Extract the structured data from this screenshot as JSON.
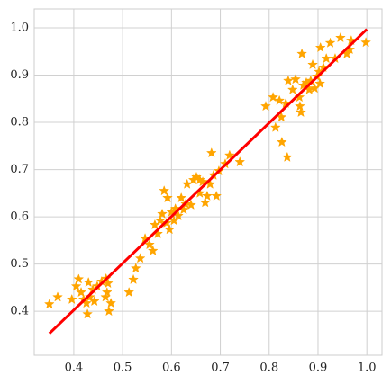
{
  "chart_data": {
    "type": "scatter",
    "xlim": [
      0.319,
      1.031
    ],
    "ylim": [
      0.307,
      1.04
    ],
    "xticks": [
      0.4,
      0.5,
      0.6,
      0.7,
      0.8,
      0.9,
      {
        "value": 1,
        "label": "1.0"
      }
    ],
    "yticks": [
      0.4,
      0.5,
      0.6,
      0.7,
      0.8,
      0.9,
      {
        "value": 1,
        "label": "1.0"
      }
    ],
    "grid": true,
    "series": [
      {
        "marker": "star",
        "color": "#ffa500",
        "x": [
          0.35,
          0.367,
          0.396,
          0.405,
          0.41,
          0.415,
          0.42,
          0.426,
          0.428,
          0.43,
          0.433,
          0.439,
          0.442,
          0.448,
          0.457,
          0.465,
          0.468,
          0.47,
          0.472,
          0.476,
          0.466,
          0.513,
          0.522,
          0.527,
          0.536,
          0.546,
          0.555,
          0.562,
          0.566,
          0.572,
          0.577,
          0.581,
          0.585,
          0.59,
          0.592,
          0.596,
          0.6,
          0.605,
          0.608,
          0.614,
          0.62,
          0.625,
          0.629,
          0.632,
          0.64,
          0.645,
          0.651,
          0.658,
          0.664,
          0.669,
          0.673,
          0.679,
          0.682,
          0.686,
          0.692,
          0.697,
          0.71,
          0.719,
          0.74,
          0.658,
          0.793,
          0.808,
          0.813,
          0.821,
          0.825,
          0.826,
          0.834,
          0.837,
          0.839,
          0.848,
          0.854,
          0.862,
          0.863,
          0.865,
          0.867,
          0.87,
          0.876,
          0.882,
          0.885,
          0.889,
          0.893,
          0.898,
          0.902,
          0.904,
          0.905,
          0.911,
          0.917,
          0.925,
          0.935,
          0.946,
          0.959,
          0.965,
          0.968,
          0.998
        ],
        "values": [
          0.415,
          0.43,
          0.425,
          0.453,
          0.468,
          0.44,
          0.425,
          0.417,
          0.394,
          0.461,
          0.43,
          0.446,
          0.421,
          0.453,
          0.463,
          0.43,
          0.44,
          0.459,
          0.4,
          0.417,
          0.469,
          0.44,
          0.467,
          0.491,
          0.512,
          0.554,
          0.541,
          0.528,
          0.583,
          0.564,
          0.592,
          0.606,
          0.655,
          0.587,
          0.64,
          0.573,
          0.61,
          0.592,
          0.617,
          0.602,
          0.64,
          0.615,
          0.627,
          0.669,
          0.625,
          0.678,
          0.684,
          0.65,
          0.674,
          0.63,
          0.644,
          0.669,
          0.735,
          0.688,
          0.644,
          0.697,
          0.712,
          0.73,
          0.716,
          0.678,
          0.834,
          0.853,
          0.789,
          0.846,
          0.811,
          0.758,
          0.84,
          0.726,
          0.888,
          0.869,
          0.891,
          0.853,
          0.834,
          0.821,
          0.945,
          0.878,
          0.884,
          0.869,
          0.888,
          0.922,
          0.872,
          0.897,
          0.907,
          0.882,
          0.958,
          0.916,
          0.935,
          0.968,
          0.935,
          0.979,
          0.945,
          0.954,
          0.973,
          0.969
        ]
      },
      {
        "marker": "line",
        "color": "#ff0000",
        "x": [
          0.35,
          1.0
        ],
        "values": [
          0.353,
          0.997
        ]
      }
    ]
  }
}
